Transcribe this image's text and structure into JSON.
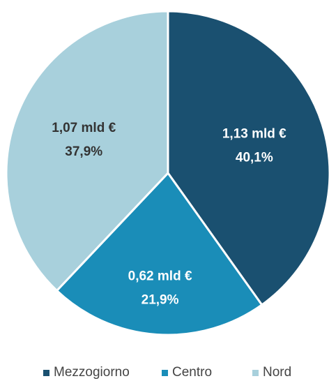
{
  "chart_data": {
    "type": "pie",
    "categories": [
      "Mezzogiorno",
      "Centro",
      "Nord"
    ],
    "values": [
      40.1,
      21.9,
      37.9
    ],
    "value_labels": [
      "40,1%",
      "21,9%",
      "37,9%"
    ],
    "amounts": [
      1.13,
      0.62,
      1.07
    ],
    "amount_labels": [
      "1,13 mld €",
      "0,62 mld €",
      "1,07 mld €"
    ],
    "colors": [
      "#1a5070",
      "#1a8db8",
      "#a8d0dc"
    ],
    "legend": "bottom"
  }
}
